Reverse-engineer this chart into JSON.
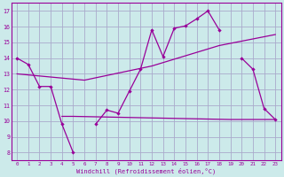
{
  "background_color": "#cceaea",
  "grid_color": "#aaaacc",
  "line_color": "#990099",
  "xlabel": "Windchill (Refroidissement éolien,°C)",
  "xlim": [
    -0.5,
    23.5
  ],
  "ylim": [
    7.5,
    17.5
  ],
  "yticks": [
    8,
    9,
    10,
    11,
    12,
    13,
    14,
    15,
    16,
    17
  ],
  "xticks": [
    0,
    1,
    2,
    3,
    4,
    5,
    6,
    7,
    8,
    9,
    10,
    11,
    12,
    13,
    14,
    15,
    16,
    17,
    18,
    19,
    20,
    21,
    22,
    23
  ],
  "line1_x": [
    0,
    1,
    2,
    3,
    4,
    5,
    7,
    8,
    9,
    10,
    11,
    12,
    13,
    14,
    15,
    16,
    17,
    18,
    20,
    21,
    22,
    23
  ],
  "line1_y": [
    14.0,
    13.6,
    12.2,
    12.2,
    9.8,
    8.0,
    9.8,
    10.7,
    10.5,
    11.9,
    13.3,
    15.8,
    14.1,
    15.9,
    16.05,
    16.5,
    17.0,
    15.8,
    14.0,
    13.3,
    10.8,
    10.1
  ],
  "line1_breaks": [
    5,
    18
  ],
  "line2_x": [
    4,
    5,
    19,
    23
  ],
  "line2_y": [
    10.3,
    10.3,
    10.1,
    10.1
  ],
  "line3_x": [
    0,
    6,
    12,
    18,
    23
  ],
  "line3_y": [
    13.0,
    12.6,
    13.5,
    14.8,
    15.5
  ]
}
